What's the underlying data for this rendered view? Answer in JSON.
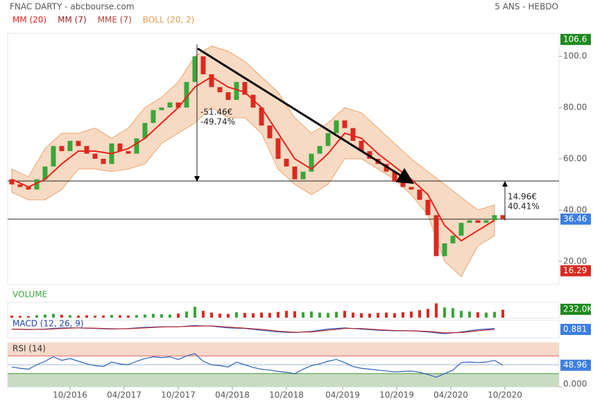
{
  "chart_data": {
    "type": "candlestick",
    "title": "FNAC DARTY - abcbourse.com",
    "period": "5 ANS - HEBDO",
    "legend": [
      {
        "name": "MM (20)",
        "color": "#e8221a"
      },
      {
        "name": "MM (7)",
        "color": "#9b1b1b"
      },
      {
        "name": "MME (7)",
        "color": "#b04030"
      },
      {
        "name": "BOLL (20, 2)",
        "color": "#e89a50"
      }
    ],
    "x": [
      0,
      4,
      8,
      12,
      16,
      20,
      24,
      28,
      32,
      36,
      40,
      44,
      48,
      52,
      56,
      60,
      64,
      68,
      72,
      76,
      80,
      84,
      88,
      92,
      96,
      100,
      104,
      108,
      112,
      116,
      120,
      124,
      128,
      132,
      136,
      140,
      144,
      148,
      152,
      156,
      160,
      164,
      168,
      172,
      176,
      180,
      184,
      188,
      192,
      196,
      200,
      204,
      208,
      212,
      216,
      220,
      224,
      228,
      232,
      236
    ],
    "open": [
      52,
      50,
      49,
      48,
      52,
      57,
      65,
      63,
      67,
      65,
      62,
      60,
      58,
      66,
      63,
      62,
      68,
      74,
      79,
      80,
      82,
      80,
      90,
      100,
      93,
      88,
      86,
      83,
      90,
      85,
      80,
      73,
      68,
      60,
      57,
      52,
      55,
      62,
      65,
      70,
      75,
      72,
      67,
      63,
      60,
      58,
      55,
      51,
      49,
      48,
      44,
      38,
      22,
      27,
      30,
      35,
      36,
      35,
      36,
      38
    ],
    "close": [
      50,
      49,
      48,
      52,
      57,
      65,
      63,
      67,
      65,
      62,
      60,
      58,
      66,
      63,
      62,
      68,
      74,
      79,
      80,
      82,
      80,
      90,
      100,
      93,
      88,
      86,
      83,
      90,
      85,
      80,
      73,
      68,
      60,
      57,
      52,
      55,
      62,
      65,
      70,
      75,
      72,
      67,
      63,
      60,
      58,
      55,
      51,
      49,
      48,
      44,
      38,
      22,
      27,
      30,
      35,
      36,
      35,
      36,
      38,
      36.46
    ],
    "up_color": "#3aa63a",
    "down_color": "#d92a20",
    "xlim": [
      -2,
      263
    ],
    "xticks": [
      {
        "value": 28,
        "label": "10/2016"
      },
      {
        "value": 54,
        "label": "04/2017"
      },
      {
        "value": 80,
        "label": "10/2017"
      },
      {
        "value": 106,
        "label": "04/2018"
      },
      {
        "value": 132,
        "label": "10/2018"
      },
      {
        "value": 159,
        "label": "04/2019"
      },
      {
        "value": 185,
        "label": "10/2019"
      },
      {
        "value": 211,
        "label": "04/2020"
      },
      {
        "value": 237,
        "label": "10/2020"
      }
    ],
    "ylim": [
      11,
      109
    ],
    "yticks": [
      {
        "value": 20,
        "label": "20.00"
      },
      {
        "value": 40,
        "label": "40.00"
      },
      {
        "value": 60,
        "label": "60.00"
      },
      {
        "value": 80,
        "label": "80.00"
      },
      {
        "value": 100,
        "label": "100.0"
      }
    ],
    "overlay_x": [
      0,
      8,
      16,
      24,
      32,
      40,
      48,
      56,
      64,
      72,
      80,
      88,
      96,
      104,
      112,
      120,
      128,
      136,
      144,
      152,
      160,
      168,
      176,
      184,
      192,
      200,
      208,
      216,
      224,
      232
    ],
    "ma20": [
      52,
      49,
      52,
      58,
      63,
      63,
      62,
      64,
      68,
      74,
      80,
      88,
      92,
      88,
      86,
      80,
      70,
      60,
      56,
      62,
      70,
      68,
      62,
      57,
      52,
      46,
      34,
      28,
      32,
      36
    ],
    "boll_upper": [
      56,
      53,
      64,
      70,
      70,
      72,
      68,
      72,
      80,
      84,
      90,
      100,
      104,
      102,
      98,
      92,
      86,
      76,
      70,
      74,
      80,
      78,
      72,
      66,
      60,
      55,
      50,
      45,
      40,
      42
    ],
    "boll_lower": [
      47,
      44,
      44,
      48,
      56,
      56,
      55,
      56,
      58,
      66,
      70,
      74,
      80,
      76,
      76,
      70,
      56,
      50,
      46,
      50,
      60,
      60,
      56,
      52,
      46,
      38,
      20,
      14,
      26,
      30
    ],
    "high": 106.6,
    "low": 16.29,
    "annotations": [
      "-51.46€",
      "-49.74%",
      "14.96€",
      "40.41%"
    ],
    "volume": {
      "label": "VOLUME",
      "values": [
        60000,
        50000,
        45000,
        70000,
        90000,
        110000,
        80000,
        70000,
        60000,
        65000,
        55000,
        60000,
        80000,
        70000,
        60000,
        75000,
        90000,
        110000,
        100000,
        90000,
        120000,
        180000,
        320000,
        200000,
        150000,
        120000,
        110000,
        160000,
        140000,
        130000,
        150000,
        140000,
        170000,
        200000,
        190000,
        160000,
        180000,
        150000,
        140000,
        170000,
        200000,
        150000,
        130000,
        120000,
        140000,
        150000,
        130000,
        160000,
        180000,
        220000,
        260000,
        420000,
        300000,
        280000,
        200000,
        180000,
        160000,
        150000,
        170000,
        232000
      ],
      "ylim": [
        0,
        450000
      ],
      "last": {
        "value": 232000,
        "label": "232.0K"
      }
    },
    "macd": {
      "label": "MACD (12, 26, 9)",
      "values": [
        0,
        -1,
        0,
        2,
        2,
        1,
        0,
        1,
        3,
        4,
        4,
        6,
        5,
        2,
        1,
        -2,
        -5,
        -6,
        -4,
        0,
        2,
        0,
        -2,
        -3,
        -3,
        -5,
        -8,
        -5,
        -1,
        0.881
      ],
      "signal": [
        0,
        -0.5,
        -0.5,
        1,
        2,
        1.5,
        0.5,
        0.5,
        2,
        3.5,
        4,
        5,
        5.5,
        3.5,
        1.5,
        -0.5,
        -3.5,
        -5.5,
        -5,
        -2,
        1,
        1,
        -1,
        -2.5,
        -3,
        -4,
        -6.5,
        -6,
        -3,
        -0.5
      ],
      "ylim": [
        -15,
        15
      ]
    },
    "rsi": {
      "label": "RSI (14)",
      "values": [
        45,
        42,
        40,
        50,
        58,
        68,
        60,
        64,
        58,
        52,
        48,
        46,
        56,
        52,
        50,
        58,
        64,
        68,
        66,
        68,
        62,
        70,
        75,
        58,
        50,
        48,
        45,
        56,
        50,
        44,
        40,
        38,
        35,
        33,
        30,
        40,
        48,
        52,
        58,
        62,
        55,
        46,
        42,
        40,
        38,
        36,
        34,
        35,
        36,
        33,
        28,
        22,
        30,
        38,
        55,
        56,
        55,
        56,
        60,
        48.96
      ],
      "ylim": [
        0,
        100
      ],
      "upper": 70,
      "lower": 30,
      "middle": 50,
      "yticks": [
        {
          "value": 0,
          "label": "0.000"
        }
      ]
    }
  }
}
